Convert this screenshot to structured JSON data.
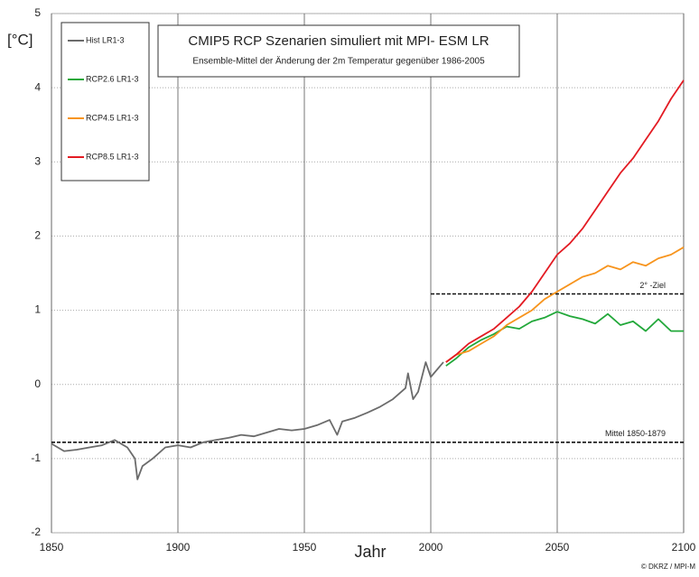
{
  "chart_data": {
    "type": "line",
    "title": "CMIP5 RCP Szenarien simuliert mit MPI- ESM LR",
    "subtitle": "Ensemble-Mittel der Änderung der 2m Temperatur gegenüber 1986-2005",
    "y_label": "[°C]",
    "x_label": "Jahr",
    "credit": "© DKRZ / MPI-M",
    "xlim": [
      1850,
      2100
    ],
    "xticks": [
      1850,
      1900,
      1950,
      2000,
      2050,
      2100
    ],
    "ylim": [
      -2,
      5
    ],
    "yticks": [
      -2,
      -1,
      0,
      1,
      2,
      3,
      4,
      5
    ],
    "grid": true,
    "legend": "upper left",
    "series": [
      {
        "name": "Hist LR1-3",
        "color": "#6b6b6b",
        "x": [
          1850,
          1855,
          1860,
          1865,
          1870,
          1875,
          1880,
          1883,
          1884,
          1886,
          1890,
          1895,
          1900,
          1905,
          1910,
          1915,
          1920,
          1925,
          1930,
          1935,
          1940,
          1945,
          1950,
          1955,
          1960,
          1963,
          1965,
          1970,
          1975,
          1980,
          1985,
          1990,
          1991,
          1993,
          1995,
          1998,
          2000,
          2005
        ],
        "values": [
          -0.8,
          -0.9,
          -0.88,
          -0.85,
          -0.82,
          -0.75,
          -0.85,
          -1.0,
          -1.28,
          -1.1,
          -1.0,
          -0.85,
          -0.82,
          -0.85,
          -0.78,
          -0.75,
          -0.72,
          -0.68,
          -0.7,
          -0.65,
          -0.6,
          -0.62,
          -0.6,
          -0.55,
          -0.48,
          -0.68,
          -0.5,
          -0.45,
          -0.38,
          -0.3,
          -0.2,
          -0.05,
          0.15,
          -0.2,
          -0.1,
          0.3,
          0.1,
          0.3
        ]
      },
      {
        "name": "RCP2.6 LR1-3",
        "color": "#22a83a",
        "x": [
          2006,
          2010,
          2015,
          2020,
          2025,
          2030,
          2035,
          2040,
          2045,
          2050,
          2055,
          2060,
          2065,
          2070,
          2075,
          2080,
          2085,
          2090,
          2095,
          2100
        ],
        "values": [
          0.25,
          0.35,
          0.5,
          0.6,
          0.68,
          0.78,
          0.75,
          0.85,
          0.9,
          0.98,
          0.92,
          0.88,
          0.82,
          0.95,
          0.8,
          0.85,
          0.72,
          0.88,
          0.72,
          0.72
        ]
      },
      {
        "name": "RCP4.5 LR1-3",
        "color": "#f7941d",
        "x": [
          2006,
          2010,
          2015,
          2020,
          2025,
          2030,
          2035,
          2040,
          2045,
          2050,
          2055,
          2060,
          2065,
          2070,
          2075,
          2080,
          2085,
          2090,
          2095,
          2100
        ],
        "values": [
          0.3,
          0.4,
          0.45,
          0.55,
          0.65,
          0.8,
          0.9,
          1.0,
          1.15,
          1.25,
          1.35,
          1.45,
          1.5,
          1.6,
          1.55,
          1.65,
          1.6,
          1.7,
          1.75,
          1.85
        ]
      },
      {
        "name": "RCP8.5 LR1-3",
        "color": "#e31b23",
        "x": [
          2006,
          2010,
          2015,
          2020,
          2025,
          2030,
          2035,
          2040,
          2045,
          2050,
          2055,
          2060,
          2065,
          2070,
          2075,
          2080,
          2085,
          2090,
          2095,
          2100
        ],
        "values": [
          0.3,
          0.4,
          0.55,
          0.65,
          0.75,
          0.9,
          1.05,
          1.25,
          1.5,
          1.75,
          1.9,
          2.1,
          2.35,
          2.6,
          2.85,
          3.05,
          3.3,
          3.55,
          3.85,
          4.1
        ]
      }
    ],
    "reference_lines": [
      {
        "label": "Mittel 1850-1879",
        "value": -0.78,
        "x": [
          1850,
          2100
        ]
      },
      {
        "label": "2° -Ziel",
        "value": 1.22,
        "x": [
          2000,
          2100
        ]
      }
    ]
  }
}
